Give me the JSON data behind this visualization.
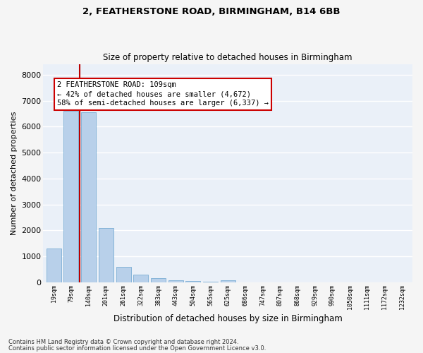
{
  "title1": "2, FEATHERSTONE ROAD, BIRMINGHAM, B14 6BB",
  "title2": "Size of property relative to detached houses in Birmingham",
  "xlabel": "Distribution of detached houses by size in Birmingham",
  "ylabel": "Number of detached properties",
  "categories": [
    "19sqm",
    "79sqm",
    "140sqm",
    "201sqm",
    "261sqm",
    "322sqm",
    "383sqm",
    "443sqm",
    "504sqm",
    "565sqm",
    "625sqm",
    "686sqm",
    "747sqm",
    "807sqm",
    "868sqm",
    "929sqm",
    "990sqm",
    "1050sqm",
    "1111sqm",
    "1172sqm",
    "1232sqm"
  ],
  "values": [
    1300,
    6600,
    6550,
    2100,
    580,
    300,
    150,
    80,
    50,
    30,
    80,
    0,
    0,
    0,
    0,
    0,
    0,
    0,
    0,
    0,
    0
  ],
  "bar_color": "#b8d0ea",
  "bar_edge_color": "#7aadd4",
  "bg_color": "#eaf0f8",
  "grid_color": "#ffffff",
  "vline_x": 1.5,
  "vline_color": "#bb0000",
  "annotation_box_text": "2 FEATHERSTONE ROAD: 109sqm\n← 42% of detached houses are smaller (4,672)\n58% of semi-detached houses are larger (6,337) →",
  "annotation_box_color": "#cc0000",
  "annotation_box_bg": "#ffffff",
  "footnote1": "Contains HM Land Registry data © Crown copyright and database right 2024.",
  "footnote2": "Contains public sector information licensed under the Open Government Licence v3.0.",
  "ylim": [
    0,
    8400
  ],
  "yticks": [
    0,
    1000,
    2000,
    3000,
    4000,
    5000,
    6000,
    7000,
    8000
  ],
  "fig_bg": "#f5f5f5",
  "title1_fontsize": 9.5,
  "title2_fontsize": 8.5
}
